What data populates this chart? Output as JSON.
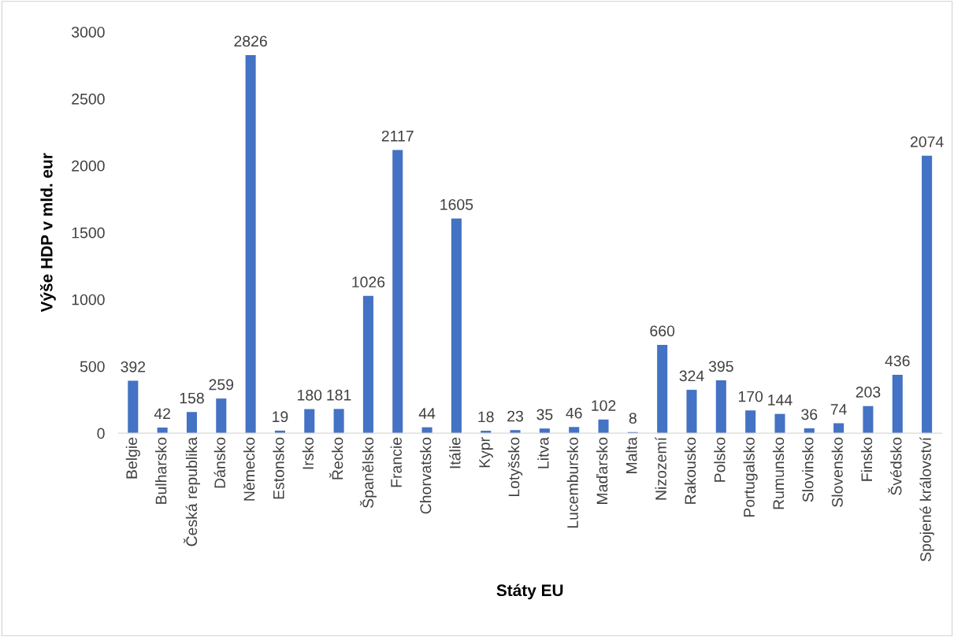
{
  "chart_data": {
    "type": "bar",
    "xlabel": "Státy EU",
    "ylabel": "Výše HDP v mld. eur",
    "categories": [
      "Belgie",
      "Bulharsko",
      "Česká republika",
      "Dánsko",
      "Německo",
      "Estonsko",
      "Irsko",
      "Řecko",
      "Španělsko",
      "Francie",
      "Chorvatsko",
      "Itálie",
      "Kypr",
      "Lotyšsko",
      "Litva",
      "Lucembursko",
      "Maďarsko",
      "Malta",
      "Nizozemí",
      "Rakousko",
      "Polsko",
      "Portugalsko",
      "Rumunsko",
      "Slovinsko",
      "Slovensko",
      "Finsko",
      "Švédsko",
      "Spojené království"
    ],
    "values": [
      392,
      42,
      158,
      259,
      2826,
      19,
      180,
      181,
      1026,
      2117,
      44,
      1605,
      18,
      23,
      35,
      46,
      102,
      8,
      660,
      324,
      395,
      170,
      144,
      36,
      74,
      203,
      436,
      2074
    ],
    "color": "#4472c4",
    "ylim": [
      0,
      3000
    ],
    "yticks": [
      0,
      500,
      1000,
      1500,
      2000,
      2500,
      3000
    ],
    "grid": false,
    "legend": false,
    "data_labels": true
  }
}
